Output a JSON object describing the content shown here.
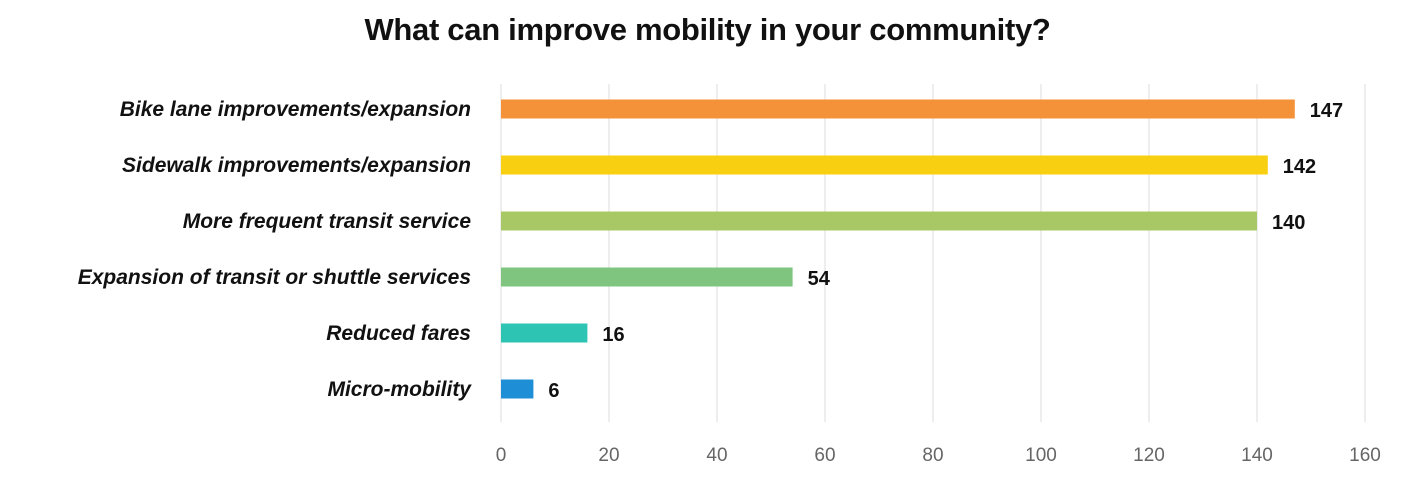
{
  "chart_data": {
    "type": "bar",
    "orientation": "horizontal",
    "title": "What can improve mobility in your community?",
    "xlabel": "",
    "ylabel": "",
    "categories": [
      "Bike lane improvements/expansion",
      "Sidewalk improvements/expansion",
      "More frequent transit service",
      "Expansion of transit or shuttle services",
      "Reduced fares",
      "Micro-mobility"
    ],
    "values": [
      147,
      142,
      140,
      54,
      16,
      6
    ],
    "colors": [
      "#f4923a",
      "#f9cf12",
      "#a8c865",
      "#7fc47f",
      "#2ec4b4",
      "#1e8fd6"
    ],
    "xlim": [
      0,
      160
    ],
    "xticks": [
      0,
      20,
      40,
      60,
      80,
      100,
      120,
      140,
      160
    ],
    "grid": true,
    "data_labels": true
  }
}
